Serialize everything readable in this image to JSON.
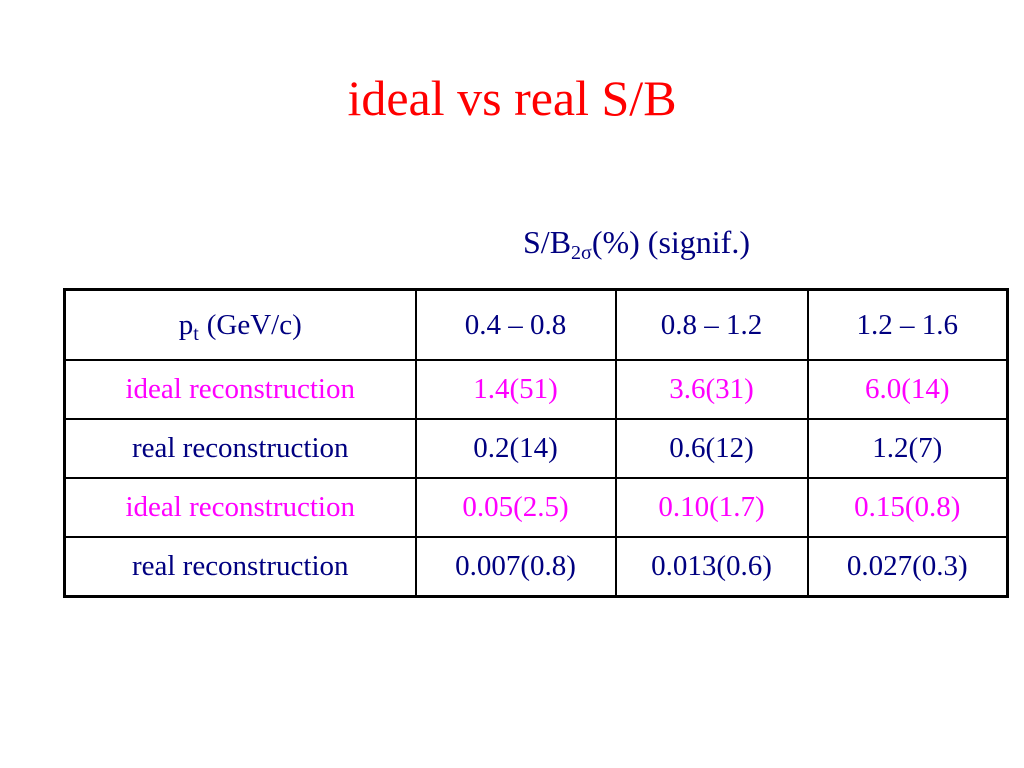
{
  "title": "ideal vs real S/B",
  "subheading": {
    "main": "S/B",
    "sub": "2σ",
    "rest": "(%) (signif.)"
  },
  "table": {
    "header": {
      "label": {
        "main": "p",
        "sub": "t",
        "rest": "(GeV/c)"
      },
      "columns": [
        "0.4 – 0.8",
        "0.8 – 1.2",
        "1.2 – 1.6"
      ]
    },
    "rows": [
      {
        "label": "ideal reconstruction",
        "color": "#ff00ff",
        "values": [
          "1.4(51)",
          "3.6(31)",
          "6.0(14)"
        ]
      },
      {
        "label": "real reconstruction",
        "color": "#000080",
        "values": [
          "0.2(14)",
          "0.6(12)",
          "1.2(7)"
        ]
      },
      {
        "label": "ideal reconstruction",
        "color": "#ff00ff",
        "values": [
          "0.05(2.5)",
          "0.10(1.7)",
          "0.15(0.8)"
        ]
      },
      {
        "label": "real reconstruction",
        "color": "#000080",
        "values": [
          "0.007(0.8)",
          "0.013(0.6)",
          "0.027(0.3)"
        ]
      }
    ]
  }
}
